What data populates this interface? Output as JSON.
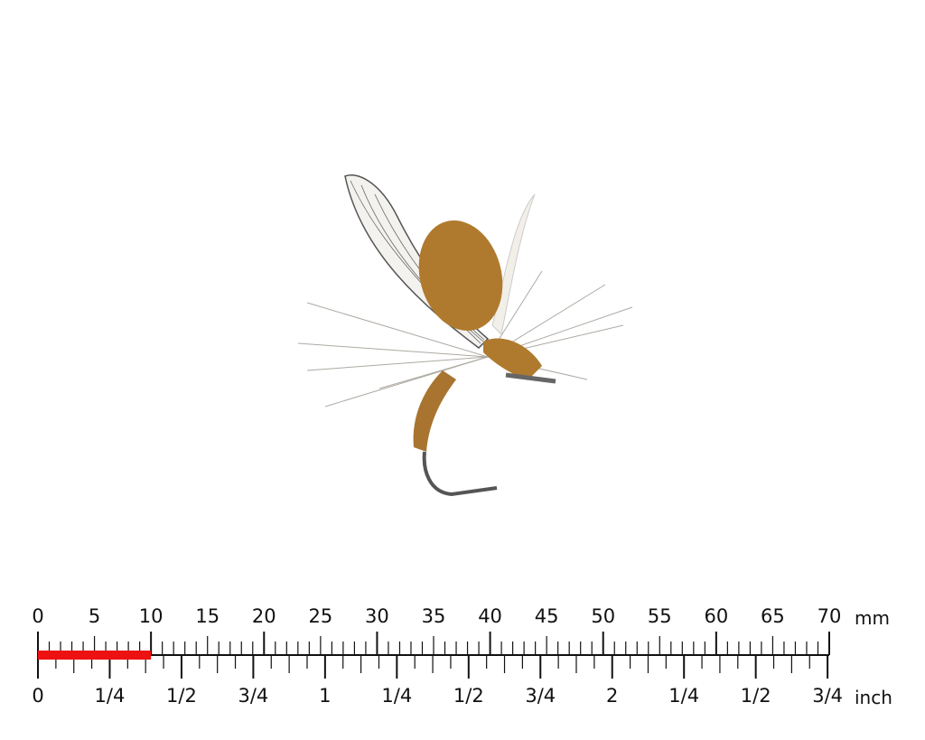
{
  "photo": {
    "subject": "fly-fishing-dry-fly",
    "background": "#ffffff",
    "body_color": "#b07a2e",
    "hackle_color": "#e8e4dc"
  },
  "ruler": {
    "mm_labels": [
      "0",
      "5",
      "10",
      "15",
      "20",
      "25",
      "30",
      "35",
      "40",
      "45",
      "50",
      "55",
      "60",
      "65",
      "70"
    ],
    "mm_unit": "mm",
    "inch_labels": [
      "0",
      "1/4",
      "1/2",
      "3/4",
      "1",
      "1/4",
      "1/2",
      "3/4",
      "2",
      "1/4",
      "1/2",
      "3/4"
    ],
    "inch_unit": "inch",
    "highlight_mm": 10,
    "highlight_color": "#ee1111",
    "max_mm": 70
  }
}
